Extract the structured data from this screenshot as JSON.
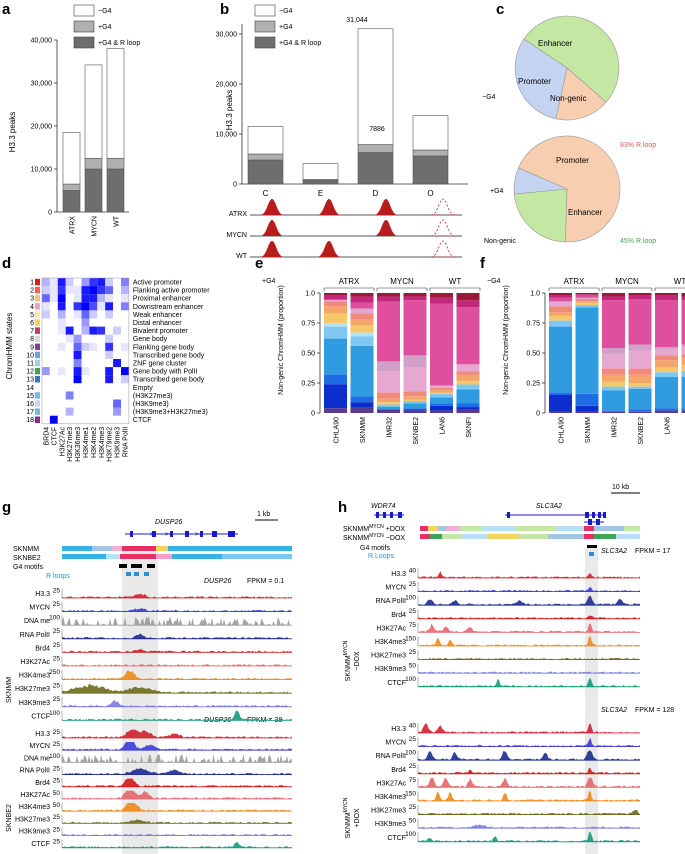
{
  "panel_letters": [
    "a",
    "b",
    "c",
    "d",
    "e",
    "f",
    "g",
    "h"
  ],
  "colors": {
    "white": "#ffffff",
    "light_gray": "#b0b0b0",
    "dark_gray": "#6e6e6e",
    "enhancer": "#c4e7a3",
    "promoter": "#f7cfb0",
    "nongenic": "#c3d3f0",
    "rloop_red": "#e06058",
    "rloop_green": "#4aa34a",
    "peak_red": "#b81d1d"
  },
  "legend": {
    "minus_g4": "−G4",
    "plus_g4": "+G4",
    "plus_g4_rloop": "+G4 & R loop"
  },
  "chart_data": [
    {
      "panel": "a",
      "type": "bar",
      "stacked": true,
      "ylabel": "H3.3 peaks",
      "ylim": [
        0,
        40000
      ],
      "yticks": [
        "0",
        "10,000",
        "20,000",
        "30,000",
        "40,000"
      ],
      "categories": [
        "ATRX",
        "MYCN",
        "WT"
      ],
      "series": [
        {
          "name": "+G4 & R loop",
          "values": [
            5000,
            10000,
            10000
          ]
        },
        {
          "name": "+G4",
          "values": [
            1500,
            2500,
            2500
          ]
        },
        {
          "name": "−G4",
          "values": [
            12000,
            21700,
            25500
          ]
        }
      ]
    },
    {
      "panel": "b",
      "type": "bar",
      "stacked": true,
      "ylabel": "H3.3 peaks",
      "ylim": [
        0,
        32000
      ],
      "yticks": [
        "0",
        "10,000",
        "20,000",
        "30,000"
      ],
      "categories": [
        "C",
        "E",
        "D",
        "O"
      ],
      "series": [
        {
          "name": "+G4 & R loop",
          "values": [
            4800,
            700,
            6300,
            5600
          ]
        },
        {
          "name": "+G4",
          "values": [
            1200,
            200,
            1586,
            1200
          ]
        },
        {
          "name": "−G4",
          "values": [
            5500,
            3200,
            23158,
            6900
          ]
        }
      ],
      "annotations": {
        "D_total": "31,044",
        "D_g4": "7886"
      },
      "peak_rows": [
        "ATRX",
        "MYCN",
        "WT"
      ],
      "peak_pattern": [
        [
          1,
          1,
          1,
          0
        ],
        [
          1,
          0,
          1,
          0
        ],
        [
          1,
          1,
          0,
          0
        ]
      ]
    },
    {
      "panel": "c",
      "type": "pie",
      "pies": [
        {
          "label": "−G4",
          "slices": [
            {
              "name": "Enhancer",
              "value": 52
            },
            {
              "name": "Promoter",
              "value": 17
            },
            {
              "name": "Non-genic",
              "value": 31
            }
          ]
        },
        {
          "label": "+G4",
          "slices": [
            {
              "name": "Promoter",
              "value": 69
            },
            {
              "name": "Enhancer",
              "value": 23
            },
            {
              "name": "Non-genic",
              "value": 8
            }
          ],
          "annotations": [
            "83% R loop",
            "45% R loop"
          ]
        }
      ]
    },
    {
      "panel": "d",
      "type": "heatmap",
      "ylabel": "ChromHMM states",
      "states": [
        "Active promoter",
        "Flanking active promoter",
        "Proximal enhancer",
        "Downstream enhancer",
        "Weak enhancer",
        "Distal enhancer",
        "Bivalent promoter",
        "Gene body",
        "Flanking gene body",
        "Transcribed gene body",
        "ZNF gene cluster",
        "Gene body with PolII",
        "Transcribed gene body",
        "Empty",
        "(H3K27me3)",
        "(H3K9me3)",
        "(H3K9me3+H3K27me3)",
        "CTCF"
      ],
      "marks": [
        "BRD4",
        "CTCF",
        "H3K27Ac",
        "H3K27me3",
        "H3K36me3",
        "H3K4me1",
        "H3K4me2",
        "H3K4me3",
        "H3K79me2",
        "H3K9me3",
        "RNA PolII"
      ]
    },
    {
      "panel": "e",
      "type": "bar",
      "stacked": true,
      "title": "+G4",
      "ylabel": "Non-genic ChromHMM (proportion)",
      "ylim": [
        0,
        1
      ],
      "yticks": [
        "0",
        "0.25",
        "0.50",
        "0.75",
        "1.0"
      ],
      "groups": [
        "ATRX",
        "MYCN",
        "WT"
      ],
      "categories": [
        "CHLA90",
        "SKNMM",
        "IMR32",
        "SKNBE2",
        "LAN6",
        "SKNFI"
      ]
    },
    {
      "panel": "f",
      "type": "bar",
      "stacked": true,
      "title": "−G4",
      "ylabel": "Non-genic ChromHMM (proportion)",
      "ylim": [
        0,
        1
      ],
      "yticks": [
        "0",
        "0.25",
        "0.50",
        "0.75",
        "1.0"
      ],
      "groups": [
        "ATRX",
        "MYCN",
        "WT"
      ],
      "categories": [
        "CHLA90",
        "SKNMM",
        "IMR32",
        "SKNBE2",
        "LAN6",
        "SKNFI"
      ]
    }
  ],
  "g": {
    "gene": "DUSP26",
    "scale": "1 kb",
    "cells": [
      "SKNMM",
      "SKNBE2"
    ],
    "motifs": "G4 motifs",
    "rloops": "R loops",
    "fpkm_top": "FPKM = 0.1",
    "fpkm_bottom": "FPKM = 38",
    "group_top": "SKNMM",
    "group_bottom": "SKNBE2",
    "tracks_top": [
      "H3.3",
      "MYCN",
      "DNA me",
      "RNA PolII",
      "Brd4",
      "H3K27Ac",
      "H3K4me3",
      "H3K27me3",
      "H3K9me3",
      "CTCF"
    ],
    "tracks_bottom": [
      "H3.3",
      "MYCN",
      "DNA me",
      "RNA PolII",
      "Brd4",
      "H3K27Ac",
      "H3K4me3",
      "H3K27me3",
      "H3K9me3",
      "CTCF"
    ],
    "max_top": [
      "25",
      "25",
      "100",
      "25",
      "25",
      "25",
      "250",
      "25",
      "25",
      "100"
    ],
    "max_bottom": [
      "25",
      "25",
      "100",
      "25",
      "25",
      "50",
      "50",
      "25",
      "25",
      "25"
    ]
  },
  "h": {
    "genes": [
      "WDR74",
      "SLC3A2"
    ],
    "scale": "10 kb",
    "cell_base": "SKNMM",
    "cell_sup": "MYCN",
    "cond1": "+DOX",
    "cond2": "−DOX",
    "motifs": "G4 motifs",
    "rloops": "R Loops",
    "gene": "SLC3A2",
    "fpkm_top": "FPKM = 17",
    "fpkm_bottom": "FPKM = 128",
    "tracks": [
      "H3.3",
      "MYCN",
      "RNA PolII",
      "Brd4",
      "H3K27Ac",
      "H3K4me3",
      "H3K27me3",
      "H3K9me3",
      "CTCF"
    ],
    "max_top": [
      "40",
      "25",
      "100",
      "25",
      "75",
      "150",
      "25",
      "50",
      "100"
    ],
    "max_bottom": [
      "40",
      "25",
      "100",
      "25",
      "75",
      "150",
      "25",
      "50",
      "100"
    ]
  }
}
